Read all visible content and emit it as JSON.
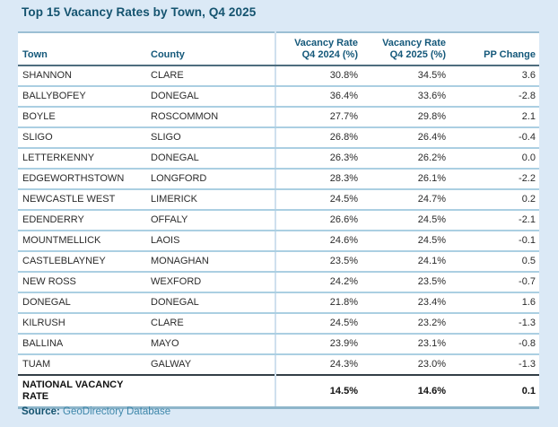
{
  "title": "Top 15 Vacancy Rates by Town, Q4 2025",
  "chart_data": {
    "type": "table",
    "title": "Top 15 Vacancy Rates by Town, Q4 2025",
    "columns": [
      {
        "label": "Town"
      },
      {
        "label": "County"
      },
      {
        "label_line1": "Vacancy Rate",
        "label_line2": "Q4 2024 (%)"
      },
      {
        "label_line1": "Vacancy Rate",
        "label_line2": "Q4 2025 (%)"
      },
      {
        "label": "PP Change"
      }
    ],
    "rows": [
      {
        "town": "SHANNON",
        "county": "CLARE",
        "rate_2024": "30.8%",
        "rate_2025": "34.5%",
        "pp_change": "3.6"
      },
      {
        "town": "BALLYBOFEY",
        "county": "DONEGAL",
        "rate_2024": "36.4%",
        "rate_2025": "33.6%",
        "pp_change": "-2.8"
      },
      {
        "town": "BOYLE",
        "county": "ROSCOMMON",
        "rate_2024": "27.7%",
        "rate_2025": "29.8%",
        "pp_change": "2.1"
      },
      {
        "town": "SLIGO",
        "county": "SLIGO",
        "rate_2024": "26.8%",
        "rate_2025": "26.4%",
        "pp_change": "-0.4"
      },
      {
        "town": "LETTERKENNY",
        "county": "DONEGAL",
        "rate_2024": "26.3%",
        "rate_2025": "26.2%",
        "pp_change": "0.0"
      },
      {
        "town": "EDGEWORTHSTOWN",
        "county": "LONGFORD",
        "rate_2024": "28.3%",
        "rate_2025": "26.1%",
        "pp_change": "-2.2"
      },
      {
        "town": "NEWCASTLE WEST",
        "county": "LIMERICK",
        "rate_2024": "24.5%",
        "rate_2025": "24.7%",
        "pp_change": "0.2"
      },
      {
        "town": "EDENDERRY",
        "county": "OFFALY",
        "rate_2024": "26.6%",
        "rate_2025": "24.5%",
        "pp_change": "-2.1"
      },
      {
        "town": "MOUNTMELLICK",
        "county": "LAOIS",
        "rate_2024": "24.6%",
        "rate_2025": "24.5%",
        "pp_change": "-0.1"
      },
      {
        "town": "CASTLEBLAYNEY",
        "county": "MONAGHAN",
        "rate_2024": "23.5%",
        "rate_2025": "24.1%",
        "pp_change": "0.5"
      },
      {
        "town": "NEW ROSS",
        "county": "WEXFORD",
        "rate_2024": "24.2%",
        "rate_2025": "23.5%",
        "pp_change": "-0.7"
      },
      {
        "town": "DONEGAL",
        "county": "DONEGAL",
        "rate_2024": "21.8%",
        "rate_2025": "23.4%",
        "pp_change": "1.6"
      },
      {
        "town": "KILRUSH",
        "county": "CLARE",
        "rate_2024": "24.5%",
        "rate_2025": "23.2%",
        "pp_change": "-1.3"
      },
      {
        "town": "BALLINA",
        "county": "MAYO",
        "rate_2024": "23.9%",
        "rate_2025": "23.1%",
        "pp_change": "-0.8"
      },
      {
        "town": "TUAM",
        "county": "GALWAY",
        "rate_2024": "24.3%",
        "rate_2025": "23.0%",
        "pp_change": "-1.3"
      }
    ],
    "footer_row": {
      "town": "NATIONAL VACANCY RATE",
      "county": "",
      "rate_2024": "14.5%",
      "rate_2025": "14.6%",
      "pp_change": "0.1"
    }
  },
  "source": {
    "label": "Source:",
    "text": "GeoDirectory Database"
  },
  "colors": {
    "page_background": "#dbe9f6",
    "table_background": "#ffffff",
    "title_text": "#14536f",
    "header_text": "#14587a",
    "row_text": "#2b2b2b",
    "row_separator": "#abcfe2",
    "table_top_border": "#9cbfd4",
    "header_bottom_border": "#4e6d7e",
    "footer_top_border": "#333f47",
    "table_bottom_border": "#8eb5ca",
    "source_link": "#3e87aa"
  }
}
